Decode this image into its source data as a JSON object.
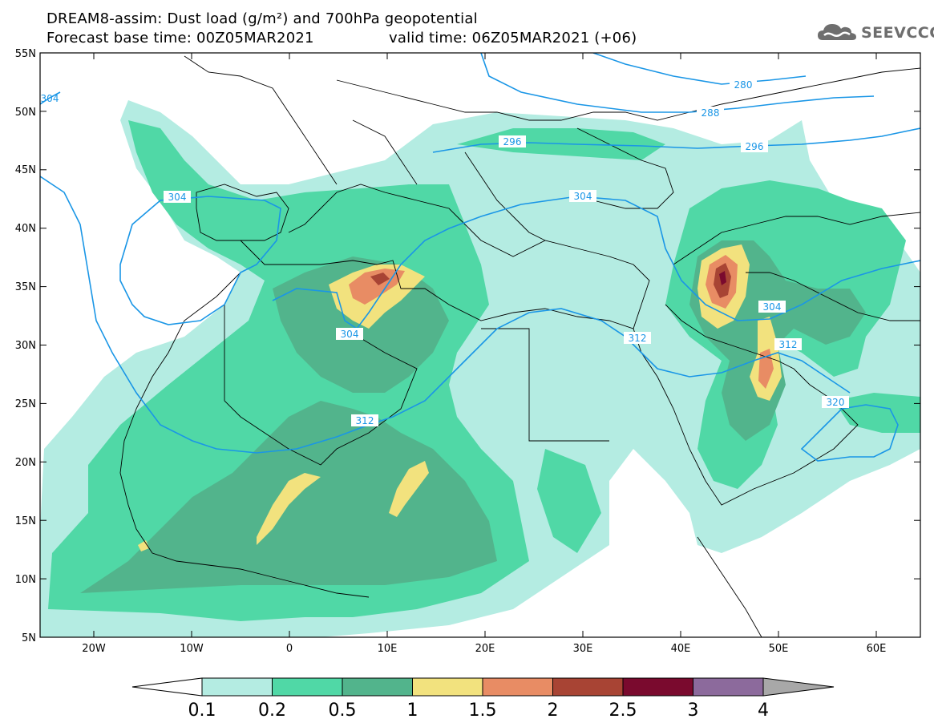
{
  "title": {
    "line1": "DREAM8-assim: Dust load (g/m²) and 700hPa geopotential",
    "base_time": "Forecast base time: 00Z05MAR2021",
    "valid_time": "valid time: 06Z05MAR2021 (+06)"
  },
  "logo": {
    "text": "SEEVCCC",
    "icon": "cloud-icon"
  },
  "axes": {
    "lat_labels": [
      "55N",
      "50N",
      "45N",
      "40N",
      "35N",
      "30N",
      "25N",
      "20N",
      "15N",
      "10N",
      "5N"
    ],
    "lon_labels": [
      "20W",
      "10W",
      "0",
      "10E",
      "20E",
      "30E",
      "40E",
      "50E",
      "60E"
    ]
  },
  "contour_labels": [
    "280",
    "288",
    "296",
    "296",
    "304",
    "304",
    "304",
    "304",
    "304",
    "312",
    "312",
    "312",
    "320"
  ],
  "colorbar": {
    "labels": [
      "0.1",
      "0.2",
      "0.5",
      "1",
      "1.5",
      "2",
      "2.5",
      "3",
      "4"
    ],
    "colors": [
      "#b4ece2",
      "#50d8a6",
      "#52b48c",
      "#f2e27e",
      "#e88c64",
      "#a84434",
      "#7a0a2e",
      "#8c6a9c",
      "#a8a8a8"
    ]
  },
  "colors": {
    "contour_line": "#1a96e6",
    "coastline": "#000000"
  }
}
